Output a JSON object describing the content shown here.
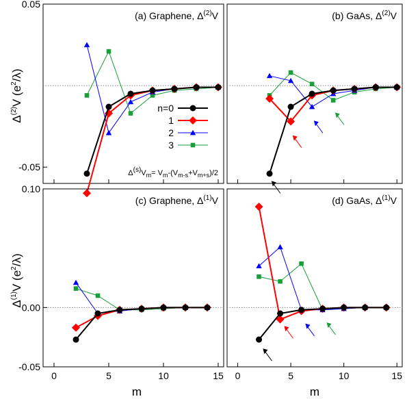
{
  "chart_data": [
    {
      "panel": "a",
      "type": "line",
      "title": "(a) Graphene, Δ(2)V",
      "title_parts": {
        "prefix": "(a) Graphene, Δ",
        "sup": "(2)",
        "suffix": "V"
      },
      "ylim": [
        -0.06,
        0.05
      ],
      "xlim": [
        -1,
        15.5
      ],
      "yticks": [
        -0.05,
        0.05
      ],
      "yticklabels": [
        "-0.05",
        "0.05"
      ],
      "zero_line": true,
      "series": [
        {
          "name": "n=0",
          "color": "#000000",
          "marker": "circle",
          "x": [
            3,
            5,
            7,
            9,
            11,
            13,
            15
          ],
          "y": [
            -0.054,
            -0.013,
            -0.005,
            -0.003,
            -0.002,
            -0.001,
            -0.001
          ]
        },
        {
          "name": "1",
          "color": "#ff0000",
          "marker": "diamond",
          "x": [
            3,
            5,
            7,
            9,
            11,
            13,
            15
          ],
          "y": [
            -0.066,
            -0.017,
            -0.006,
            -0.003,
            -0.002,
            -0.001,
            -0.001
          ]
        },
        {
          "name": "2",
          "color": "#0000ff",
          "marker": "triangle",
          "x": [
            3,
            5,
            7,
            9,
            11,
            13,
            15
          ],
          "y": [
            0.025,
            -0.029,
            -0.01,
            -0.004,
            -0.002,
            -0.001,
            -0.001
          ]
        },
        {
          "name": "3",
          "color": "#1a9e3a",
          "marker": "square",
          "x": [
            3,
            5,
            7,
            9,
            11,
            13,
            15
          ],
          "y": [
            -0.006,
            0.021,
            -0.017,
            -0.006,
            -0.003,
            -0.002,
            -0.001
          ]
        }
      ],
      "legend": {
        "entries": [
          "n=0",
          "1",
          "2",
          "3"
        ],
        "position": "lower-right"
      },
      "formula": {
        "d": "Δ",
        "s": "(s)",
        "vm": "V",
        "m": "m",
        "eq": "= V",
        "m2": "m",
        "mid1": "-(V",
        "ms": "m-s",
        "mid2": "+V",
        "mps": "m+s",
        "end": ")/2"
      }
    },
    {
      "panel": "b",
      "type": "line",
      "title": "(b) GaAs, Δ(2)V",
      "title_parts": {
        "prefix": "(b) GaAs, Δ",
        "sup": "(2)",
        "suffix": "V"
      },
      "ylim": [
        -0.06,
        0.05
      ],
      "xlim": [
        -1,
        15.5
      ],
      "zero_line": true,
      "series": [
        {
          "name": "n=0",
          "color": "#000000",
          "marker": "circle",
          "x": [
            3,
            5,
            7,
            9,
            11,
            13,
            15
          ],
          "y": [
            -0.054,
            -0.013,
            -0.005,
            -0.003,
            -0.002,
            -0.001,
            -0.001
          ]
        },
        {
          "name": "1",
          "color": "#ff0000",
          "marker": "diamond",
          "x": [
            3,
            5,
            7,
            9,
            11,
            13,
            15
          ],
          "y": [
            -0.008,
            -0.022,
            -0.006,
            -0.003,
            -0.002,
            -0.001,
            -0.001
          ]
        },
        {
          "name": "2",
          "color": "#0000ff",
          "marker": "triangle",
          "x": [
            3,
            5,
            7,
            9,
            11,
            13,
            15
          ],
          "y": [
            0.006,
            0.003,
            -0.013,
            -0.005,
            -0.003,
            -0.001,
            -0.001
          ]
        },
        {
          "name": "3",
          "color": "#1a9e3a",
          "marker": "square",
          "x": [
            3,
            5,
            7,
            9,
            11,
            13,
            15
          ],
          "y": [
            -0.006,
            0.008,
            0.001,
            -0.009,
            -0.004,
            -0.002,
            -0.001
          ]
        }
      ],
      "arrows": [
        {
          "color": "#000000",
          "x": 3.5,
          "y": -0.061
        },
        {
          "color": "#ff0000",
          "x": 5.5,
          "y": -0.033
        },
        {
          "color": "#0000ff",
          "x": 7.5,
          "y": -0.024
        },
        {
          "color": "#1a9e3a",
          "x": 9.5,
          "y": -0.019
        }
      ]
    },
    {
      "panel": "c",
      "type": "line",
      "title": "(c) Graphene, Δ(1)V",
      "title_parts": {
        "prefix": "(c) Graphene, Δ",
        "sup": "(1)",
        "suffix": "V"
      },
      "ylim": [
        -0.05,
        0.1
      ],
      "xlim": [
        -1,
        15.5
      ],
      "yticks": [
        -0.05,
        0.0,
        0.1
      ],
      "yticklabels": [
        "-0.05",
        "0.00",
        "0.10"
      ],
      "xticks": [
        0,
        5,
        10,
        15
      ],
      "xticklabels": [
        "0",
        "5",
        "10",
        "15"
      ],
      "zero_line": true,
      "series": [
        {
          "name": "n=0",
          "color": "#000000",
          "marker": "circle",
          "x": [
            2,
            4,
            6,
            8,
            10,
            12,
            14
          ],
          "y": [
            -0.027,
            -0.005,
            -0.002,
            -0.001,
            0,
            0,
            0
          ]
        },
        {
          "name": "1",
          "color": "#ff0000",
          "marker": "diamond",
          "x": [
            2,
            4,
            6,
            8,
            10,
            12,
            14
          ],
          "y": [
            -0.017,
            -0.007,
            -0.002,
            -0.001,
            0,
            0,
            0
          ]
        },
        {
          "name": "2",
          "color": "#0000ff",
          "marker": "triangle",
          "x": [
            2,
            4,
            6,
            8,
            10,
            12,
            14
          ],
          "y": [
            0.021,
            -0.005,
            -0.003,
            -0.001,
            0,
            0,
            0
          ]
        },
        {
          "name": "3",
          "color": "#1a9e3a",
          "marker": "square",
          "x": [
            2,
            4,
            6,
            8,
            10,
            12,
            14
          ],
          "y": [
            0.016,
            0.01,
            -0.002,
            -0.002,
            -0.001,
            0,
            0
          ]
        }
      ]
    },
    {
      "panel": "d",
      "type": "line",
      "title": "(d) GaAs, Δ(1)V",
      "title_parts": {
        "prefix": "(d) GaAs, Δ",
        "sup": "(1)",
        "suffix": "V"
      },
      "ylim": [
        -0.05,
        0.1
      ],
      "xlim": [
        -1,
        15.5
      ],
      "xticks": [
        0,
        5,
        10,
        15
      ],
      "xticklabels": [
        "0",
        "5",
        "10",
        "15"
      ],
      "zero_line": true,
      "series": [
        {
          "name": "n=0",
          "color": "#000000",
          "marker": "circle",
          "x": [
            2,
            4,
            6,
            8,
            10,
            12,
            14
          ],
          "y": [
            -0.027,
            -0.005,
            -0.002,
            -0.001,
            0,
            0,
            0
          ]
        },
        {
          "name": "1",
          "color": "#ff0000",
          "marker": "diamond",
          "x": [
            2,
            4,
            6,
            8,
            10,
            12,
            14
          ],
          "y": [
            0.085,
            -0.01,
            -0.003,
            -0.001,
            0,
            0,
            0
          ]
        },
        {
          "name": "2",
          "color": "#0000ff",
          "marker": "triangle",
          "x": [
            2,
            4,
            6,
            8,
            10,
            12,
            14
          ],
          "y": [
            0.035,
            0.051,
            -0.002,
            -0.002,
            -0.001,
            0,
            0
          ]
        },
        {
          "name": "3",
          "color": "#1a9e3a",
          "marker": "square",
          "x": [
            2,
            4,
            6,
            8,
            10,
            12,
            14
          ],
          "y": [
            0.026,
            0.022,
            0.037,
            -0.002,
            -0.001,
            0,
            0
          ]
        }
      ],
      "arrows": [
        {
          "color": "#000000",
          "x": 2.7,
          "y": -0.038
        },
        {
          "color": "#ff0000",
          "x": 4.7,
          "y": -0.019
        },
        {
          "color": "#0000ff",
          "x": 6.7,
          "y": -0.017
        },
        {
          "color": "#1a9e3a",
          "x": 8.7,
          "y": -0.016
        }
      ]
    }
  ],
  "axes": {
    "xlabel": "m",
    "ylabel_top": {
      "d": "Δ",
      "sup": "(2)",
      "v": "V (e",
      "sup2": "2",
      "end": "/λ)"
    },
    "ylabel_bottom": {
      "d": "Δ",
      "sup": "(1)",
      "v": "V (e",
      "sup2": "2",
      "end": "/λ)"
    }
  }
}
